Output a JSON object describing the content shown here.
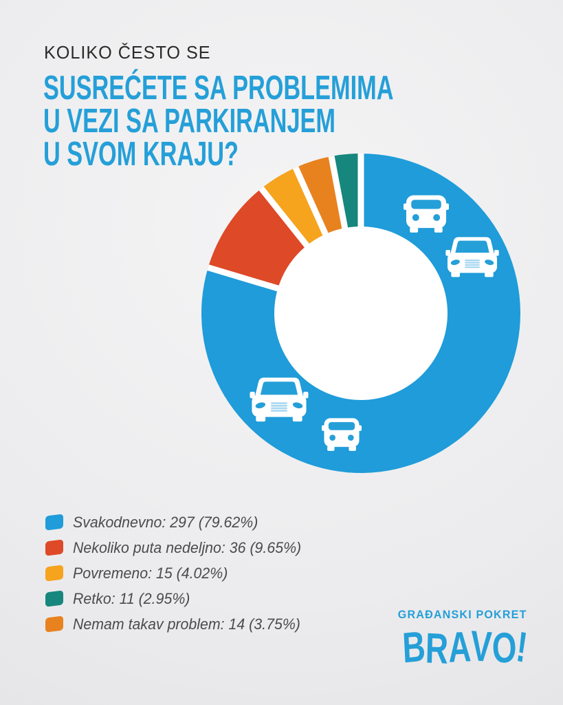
{
  "title": {
    "kicker": "KOLIKO ČESTO SE",
    "line1": "SUSREĆETE SA PROBLEMIMA",
    "line2": "U VEZI SA PARKIRANJEM",
    "line3": "U SVOM KRAJU?"
  },
  "chart_data": {
    "type": "pie",
    "subtype": "donut",
    "title": "KOLIKO ČESTO SE SUSREĆETE SA PROBLEMIMA U VEZI SA PARKIRANJEM U SVOM KRAJU?",
    "start_angle_deg": 0,
    "direction": "clockwise",
    "inner_radius_ratio": 0.54,
    "legend_position": "bottom-left",
    "hole_color": "#ffffff",
    "separator_color": "#ffffff",
    "segments": [
      {
        "label": "Svakodnevno",
        "count": 297,
        "percent": 79.62,
        "color": "#1f9cd9",
        "display": "Svakodnevno: 297 (79.62%)"
      },
      {
        "label": "Nekoliko puta nedeljno",
        "count": 36,
        "percent": 9.65,
        "color": "#de4927",
        "display": "Nekoliko puta nedeljno: 36 (9.65%)"
      },
      {
        "label": "Povremeno",
        "count": 15,
        "percent": 4.02,
        "color": "#f6a31d",
        "display": "Povremeno: 15 (4.02%)"
      },
      {
        "label": "Retko",
        "count": 11,
        "percent": 2.95,
        "color": "#17877d",
        "display": "Retko: 11 (2.95%)"
      },
      {
        "label": "Nemam takav problem",
        "count": 14,
        "percent": 3.75,
        "color": "#e8821f",
        "display": "Nemam takav problem: 14 (3.75%)"
      }
    ],
    "slice_order": [
      0,
      1,
      2,
      4,
      3
    ]
  },
  "icons": {
    "ring_icons": [
      "car-front-boxy",
      "car-front-sedan",
      "car-front-sedan",
      "car-front-boxy"
    ],
    "car_color": "#ffffff",
    "car_grille_color": "#a5d6f0"
  },
  "logo": {
    "line1": "GRAĐANSKI POKRET",
    "line2": "BRAVO!"
  },
  "colors": {
    "accent_blue": "#259fd8",
    "kicker_text": "#2b2a29",
    "legend_text": "#4b4b4d",
    "background_center": "#f4f4f5",
    "background_edge": "#e2e2e4"
  }
}
